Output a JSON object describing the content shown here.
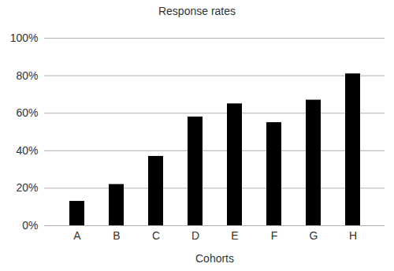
{
  "chart_data": {
    "type": "bar",
    "title": "Response rates",
    "x_label": "Cohorts",
    "categories": [
      "A",
      "B",
      "C",
      "D",
      "E",
      "F",
      "G",
      "H"
    ],
    "values": [
      13,
      22,
      37,
      58,
      65,
      55,
      67,
      81
    ],
    "color": "#000000",
    "ylim": [
      0,
      100
    ],
    "yticks": [
      {
        "value": 0,
        "label": "0%"
      },
      {
        "value": 20,
        "label": "20%"
      },
      {
        "value": 40,
        "label": "40%"
      },
      {
        "value": 60,
        "label": "60%"
      },
      {
        "value": 80,
        "label": "80%"
      },
      {
        "value": 100,
        "label": "100%"
      }
    ],
    "grid": true
  }
}
